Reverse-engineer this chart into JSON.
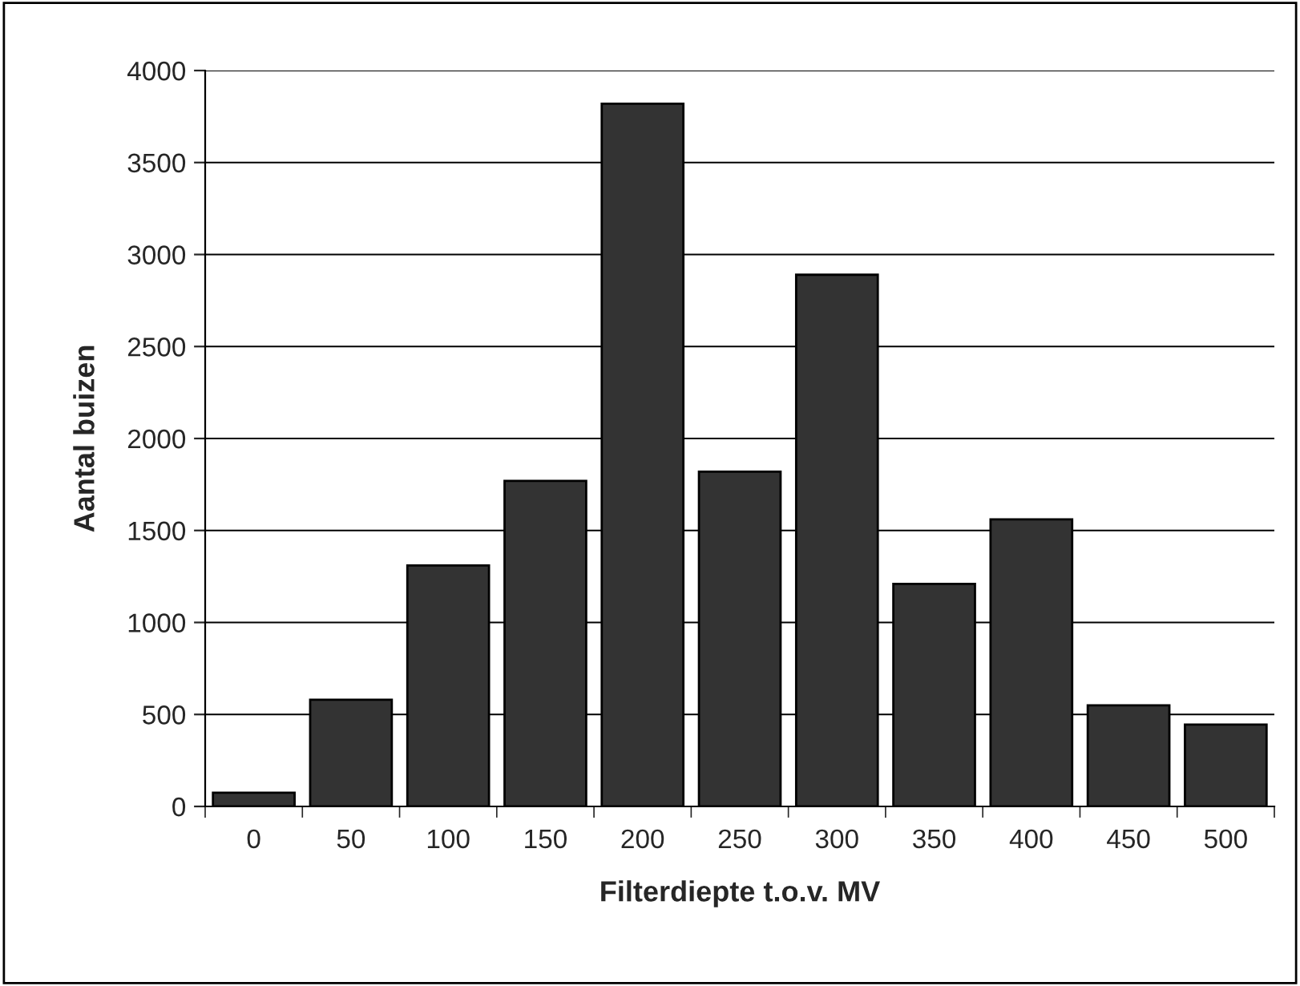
{
  "chart_data": {
    "type": "bar",
    "xlabel": "Filterdiepte t.o.v. MV",
    "ylabel": "Aantal buizen",
    "categories": [
      "0",
      "50",
      "100",
      "150",
      "200",
      "250",
      "300",
      "350",
      "400",
      "450",
      "500"
    ],
    "values": [
      75,
      580,
      1310,
      1770,
      3820,
      1820,
      2890,
      1210,
      1560,
      550,
      445
    ],
    "color": "#333333",
    "ylim": [
      0,
      4000
    ],
    "yticks": [
      0,
      500,
      1000,
      1500,
      2000,
      2500,
      3000,
      3500,
      4000
    ],
    "grid": "y",
    "legend": false
  }
}
